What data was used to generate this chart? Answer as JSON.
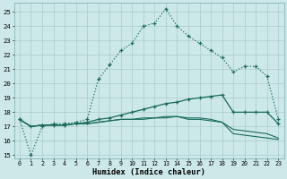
{
  "xlabel": "Humidex (Indice chaleur)",
  "xlim": [
    -0.5,
    23.5
  ],
  "ylim": [
    14.8,
    25.6
  ],
  "yticks": [
    15,
    16,
    17,
    18,
    19,
    20,
    21,
    22,
    23,
    24,
    25
  ],
  "xticks": [
    0,
    1,
    2,
    3,
    4,
    5,
    6,
    7,
    8,
    9,
    10,
    11,
    12,
    13,
    14,
    15,
    16,
    17,
    18,
    19,
    20,
    21,
    22,
    23
  ],
  "bg_color": "#cce8e8",
  "grid_color": "#aacccc",
  "line_color": "#1a6b5a",
  "line1_x": [
    0,
    1,
    2,
    3,
    4,
    5,
    6,
    7,
    8,
    9,
    10,
    11,
    12,
    13,
    14,
    15,
    16,
    17,
    18,
    19,
    20,
    21,
    22,
    23
  ],
  "line1_y": [
    17.5,
    15.0,
    17.0,
    17.2,
    17.2,
    17.3,
    17.5,
    20.3,
    21.3,
    22.3,
    22.8,
    24.0,
    24.2,
    25.2,
    24.0,
    23.3,
    22.8,
    22.3,
    21.8,
    20.8,
    21.2,
    21.2,
    20.5,
    17.5
  ],
  "line2_x": [
    0,
    1,
    2,
    3,
    4,
    5,
    6,
    7,
    8,
    9,
    10,
    11,
    12,
    13,
    14,
    15,
    16,
    17,
    18,
    19,
    20,
    21,
    22,
    23
  ],
  "line2_y": [
    17.5,
    17.0,
    17.1,
    17.1,
    17.1,
    17.2,
    17.3,
    17.5,
    17.6,
    17.8,
    18.0,
    18.2,
    18.4,
    18.6,
    18.7,
    18.9,
    19.0,
    19.1,
    19.2,
    18.0,
    18.0,
    18.0,
    18.0,
    17.2
  ],
  "line3_x": [
    0,
    1,
    2,
    3,
    4,
    5,
    6,
    7,
    8,
    9,
    10,
    11,
    12,
    13,
    14,
    15,
    16,
    17,
    18,
    19,
    20,
    21,
    22,
    23
  ],
  "line3_y": [
    17.5,
    17.0,
    17.1,
    17.1,
    17.1,
    17.2,
    17.2,
    17.3,
    17.4,
    17.5,
    17.5,
    17.6,
    17.6,
    17.7,
    17.7,
    17.6,
    17.6,
    17.5,
    17.3,
    16.5,
    16.4,
    16.3,
    16.2,
    16.1
  ],
  "line4_x": [
    0,
    1,
    2,
    3,
    4,
    5,
    6,
    7,
    8,
    9,
    10,
    11,
    12,
    13,
    14,
    15,
    16,
    17,
    18,
    19,
    20,
    21,
    22,
    23
  ],
  "line4_y": [
    17.5,
    17.0,
    17.1,
    17.1,
    17.1,
    17.2,
    17.2,
    17.3,
    17.4,
    17.5,
    17.5,
    17.5,
    17.6,
    17.6,
    17.7,
    17.5,
    17.5,
    17.4,
    17.3,
    16.8,
    16.7,
    16.6,
    16.5,
    16.2
  ]
}
